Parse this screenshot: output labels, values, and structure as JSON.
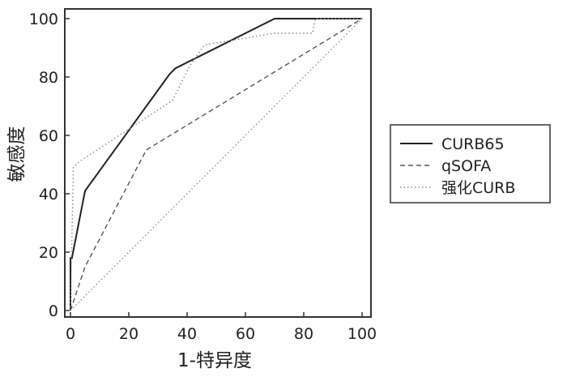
{
  "chart_data": {
    "type": "line",
    "title": "",
    "xlabel": "1-特异度",
    "ylabel": "敏感度",
    "xlim": [
      0,
      100
    ],
    "ylim": [
      0,
      100
    ],
    "x_ticks": [
      "0",
      "20",
      "40",
      "60",
      "80",
      "100"
    ],
    "y_ticks": [
      "0",
      "20",
      "40",
      "60",
      "80",
      "100"
    ],
    "grid": false,
    "legend_position": "right",
    "series": [
      {
        "name": "CURB65",
        "line_style": "solid",
        "color": "#222222",
        "points": [
          [
            0,
            0
          ],
          [
            0,
            18
          ],
          [
            0.5,
            18
          ],
          [
            5,
            41
          ],
          [
            34,
            81
          ],
          [
            36,
            83
          ],
          [
            70,
            100
          ],
          [
            100,
            100
          ]
        ]
      },
      {
        "name": "qSOFA",
        "line_style": "dashed",
        "color": "#555555",
        "points": [
          [
            0,
            0
          ],
          [
            5,
            15
          ],
          [
            26,
            55
          ],
          [
            100,
            100
          ]
        ]
      },
      {
        "name": "强化CURB",
        "line_style": "dotted",
        "color": "#888888",
        "points": [
          [
            0,
            0
          ],
          [
            1,
            49
          ],
          [
            3,
            51
          ],
          [
            35,
            72
          ],
          [
            41,
            84
          ],
          [
            46,
            91
          ],
          [
            70,
            95
          ],
          [
            83,
            95
          ],
          [
            84,
            100
          ],
          [
            100,
            100
          ]
        ]
      }
    ],
    "reference_line": {
      "line_style": "dotted",
      "color": "#888888",
      "points": [
        [
          0,
          0
        ],
        [
          100,
          100
        ]
      ]
    }
  }
}
